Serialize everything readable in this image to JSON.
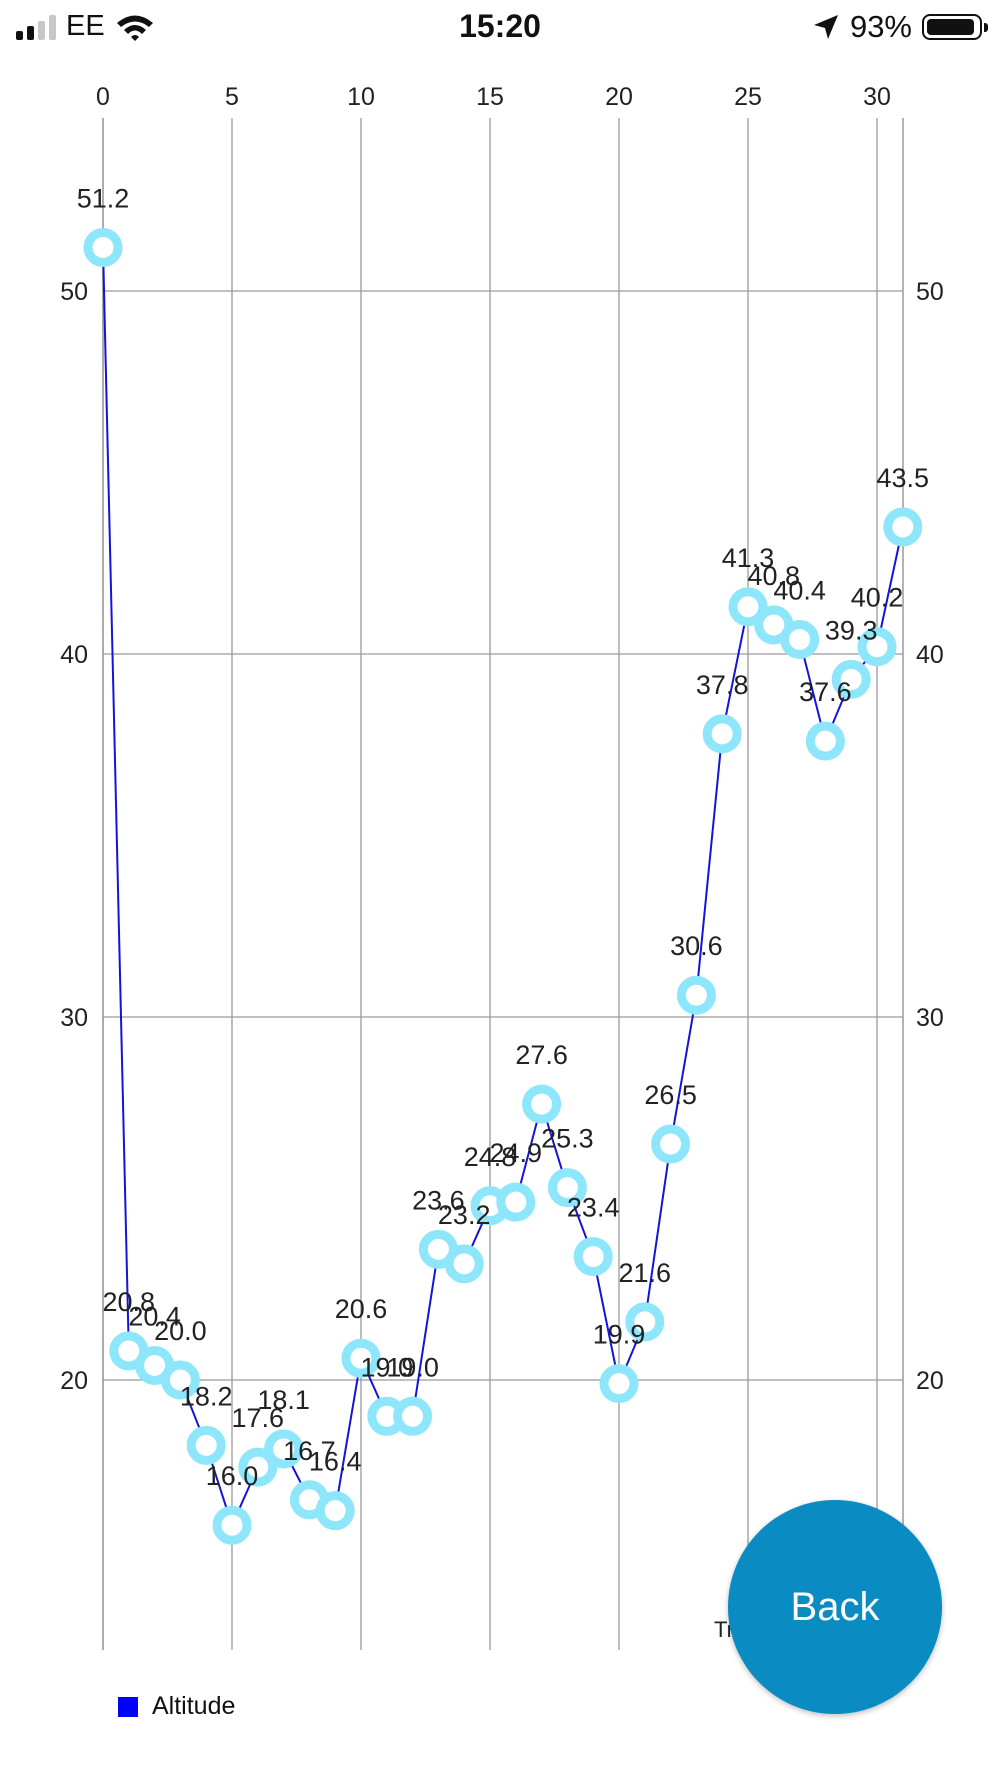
{
  "status_bar": {
    "carrier": "EE",
    "time": "15:20",
    "battery": "93%",
    "battery_level": 0.93
  },
  "chart_data": {
    "type": "line",
    "x": [
      0,
      1,
      2,
      3,
      4,
      5,
      6,
      7,
      8,
      9,
      10,
      11,
      12,
      13,
      14,
      15,
      16,
      17,
      18,
      19,
      20,
      21,
      22,
      23,
      24,
      25,
      26,
      27,
      28,
      29,
      30,
      31
    ],
    "series": [
      {
        "name": "Altitude",
        "values": [
          51.2,
          20.8,
          20.4,
          20.0,
          18.2,
          16.0,
          17.6,
          18.1,
          16.7,
          16.4,
          20.6,
          19.0,
          19.0,
          23.6,
          23.2,
          24.8,
          24.9,
          27.6,
          25.3,
          23.4,
          19.9,
          21.6,
          26.5,
          30.6,
          37.8,
          41.3,
          40.8,
          40.4,
          37.6,
          39.3,
          40.2,
          43.5
        ],
        "labels": [
          "51.2",
          "20.8",
          "20.4",
          "20.0",
          "18.2",
          "16.0",
          "17.6",
          "18.1",
          "16.7",
          "16.4",
          "20.6",
          "19.0",
          "19.0",
          "23.6",
          "23.2",
          "24.8",
          "24.9",
          "27.6",
          "25.3",
          "23.4",
          "19.9",
          "21.6",
          "26.5",
          "30.6",
          "37.8",
          "41.3",
          "40.8",
          "40.4",
          "37.6",
          "39.3",
          "40.2",
          "43.5"
        ]
      }
    ],
    "x_ticks": [
      "0",
      "5",
      "10",
      "15",
      "20",
      "25",
      "30"
    ],
    "x_tick_values": [
      0,
      5,
      10,
      15,
      20,
      25,
      30
    ],
    "y_ticks": [
      "20",
      "30",
      "40",
      "50"
    ],
    "y_tick_values": [
      20,
      30,
      40,
      50
    ],
    "xlim": [
      0,
      31
    ],
    "ylim": [
      12.5,
      54.5
    ],
    "x_axis_position": "top",
    "y_axis_labels": "both-sides",
    "grid": true,
    "legend": "bottom-left",
    "line_color": "#1414d8",
    "marker_color": "#8ee6fb",
    "x_axis_label_partial": "Tr"
  },
  "legend": {
    "label": "Altitude",
    "color": "#0000ff"
  },
  "back_button": {
    "label": "Back",
    "color": "#0a8bc2"
  }
}
